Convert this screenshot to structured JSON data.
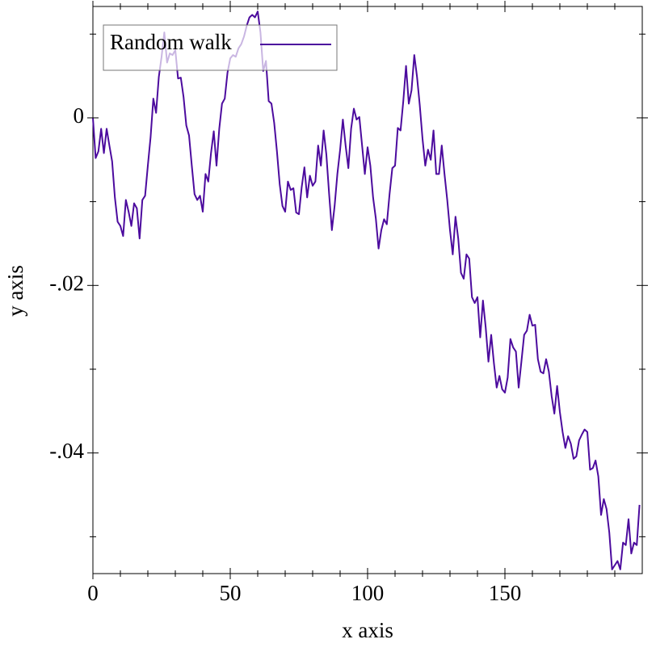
{
  "chart_data": {
    "type": "line",
    "xlabel": "x axis",
    "ylabel": "y axis",
    "x": [
      0,
      1,
      2,
      3,
      4,
      5,
      6,
      7,
      8,
      9,
      10,
      11,
      12,
      13,
      14,
      15,
      16,
      17,
      18,
      19,
      20,
      21,
      22,
      23,
      24,
      25,
      26,
      27,
      28,
      29,
      30,
      31,
      32,
      33,
      34,
      35,
      36,
      37,
      38,
      39,
      40,
      41,
      42,
      43,
      44,
      45,
      46,
      47,
      48,
      49,
      50,
      51,
      52,
      53,
      54,
      55,
      56,
      57,
      58,
      59,
      60,
      61,
      62,
      63,
      64,
      65,
      66,
      67,
      68,
      69,
      70,
      71,
      72,
      73,
      74,
      75,
      76,
      77,
      78,
      79,
      80,
      81,
      82,
      83,
      84,
      85,
      86,
      87,
      88,
      89,
      90,
      91,
      92,
      93,
      94,
      95,
      96,
      97,
      98,
      99,
      100,
      101,
      102,
      103,
      104,
      105,
      106,
      107,
      108,
      109,
      110,
      111,
      112,
      113,
      114,
      115,
      116,
      117,
      118,
      119,
      120,
      121,
      122,
      123,
      124,
      125,
      126,
      127,
      128,
      129,
      130,
      131,
      132,
      133,
      134,
      135,
      136,
      137,
      138,
      139,
      140,
      141,
      142,
      143,
      144,
      145,
      146,
      147,
      148,
      149,
      150,
      151,
      152,
      153,
      154,
      155,
      156,
      157,
      158,
      159,
      160,
      161,
      162,
      163,
      164,
      165,
      166,
      167,
      168,
      169,
      170,
      171,
      172,
      173,
      174,
      175,
      176,
      177,
      178,
      179,
      180,
      181,
      182,
      183,
      184,
      185,
      186,
      187,
      188,
      189,
      190,
      191,
      192,
      193,
      194,
      195,
      196,
      197,
      198,
      199
    ],
    "series": [
      {
        "name": "Random walk",
        "color": "#4c0b9e",
        "values": [
          0,
          -0.0048,
          -0.004,
          -0.0013,
          -0.0042,
          -0.0013,
          -0.0033,
          -0.0052,
          -0.0095,
          -0.0124,
          -0.0129,
          -0.0141,
          -0.0098,
          -0.0112,
          -0.0129,
          -0.0102,
          -0.0108,
          -0.0144,
          -0.0098,
          -0.0093,
          -0.0057,
          -0.0023,
          0.0023,
          0.0006,
          0.0049,
          0.0073,
          0.0102,
          0.0066,
          0.0077,
          0.0075,
          0.0081,
          0.0047,
          0.0048,
          0.0025,
          -0.0009,
          -0.0021,
          -0.0057,
          -0.0091,
          -0.0098,
          -0.0093,
          -0.0112,
          -0.0067,
          -0.0076,
          -0.0042,
          -0.0016,
          -0.0057,
          -0.0013,
          0.0017,
          0.0023,
          0.0054,
          0.0071,
          0.0075,
          0.0073,
          0.0083,
          0.0088,
          0.0097,
          0.011,
          0.012,
          0.0123,
          0.012,
          0.0127,
          0.0102,
          0.0056,
          0.0068,
          0.002,
          0.0017,
          -0.0006,
          -0.004,
          -0.0079,
          -0.0105,
          -0.0112,
          -0.0076,
          -0.0086,
          -0.0084,
          -0.0113,
          -0.0115,
          -0.0083,
          -0.0059,
          -0.0095,
          -0.0069,
          -0.0081,
          -0.0076,
          -0.0033,
          -0.0057,
          -0.0015,
          -0.0044,
          -0.0091,
          -0.0134,
          -0.0105,
          -0.0067,
          -0.0038,
          -0.0002,
          -0.0033,
          -0.006,
          -0.0013,
          0.0011,
          -0.0002,
          0.0001,
          -0.0033,
          -0.0067,
          -0.0035,
          -0.0057,
          -0.0095,
          -0.012,
          -0.0156,
          -0.0134,
          -0.0121,
          -0.0127,
          -0.0091,
          -0.006,
          -0.0057,
          -0.0012,
          -0.0015,
          0.002,
          0.0062,
          0.0017,
          0.0033,
          0.0075,
          0.0049,
          0.0015,
          -0.0025,
          -0.0057,
          -0.0038,
          -0.005,
          -0.0015,
          -0.0067,
          -0.0067,
          -0.0033,
          -0.0067,
          -0.0098,
          -0.0134,
          -0.0163,
          -0.0118,
          -0.0144,
          -0.0185,
          -0.0192,
          -0.0163,
          -0.0168,
          -0.0214,
          -0.0221,
          -0.0214,
          -0.0262,
          -0.0218,
          -0.025,
          -0.0291,
          -0.0259,
          -0.0293,
          -0.0322,
          -0.0308,
          -0.0324,
          -0.0328,
          -0.031,
          -0.0264,
          -0.0274,
          -0.0279,
          -0.0322,
          -0.0291,
          -0.0259,
          -0.0254,
          -0.0235,
          -0.0248,
          -0.0247,
          -0.0288,
          -0.0303,
          -0.0305,
          -0.0288,
          -0.0303,
          -0.0332,
          -0.0353,
          -0.032,
          -0.0351,
          -0.0375,
          -0.0394,
          -0.038,
          -0.0389,
          -0.0407,
          -0.0404,
          -0.0385,
          -0.0378,
          -0.0372,
          -0.0375,
          -0.042,
          -0.0418,
          -0.0409,
          -0.0428,
          -0.0474,
          -0.0455,
          -0.0467,
          -0.0495,
          -0.0539,
          -0.0534,
          -0.0529,
          -0.0539,
          -0.0507,
          -0.051,
          -0.0479,
          -0.052,
          -0.0507,
          -0.051,
          -0.0462
        ]
      }
    ],
    "xlim": [
      0,
      200
    ],
    "ylim": [
      -0.0544,
      0.0133
    ],
    "xticks": [
      0,
      50,
      100,
      150
    ],
    "yticks": [
      0,
      {
        "value": -0.02,
        "label": "-.02"
      },
      {
        "value": -0.04,
        "label": "-.04"
      }
    ],
    "xminorticks": [
      10,
      20,
      30,
      40,
      60,
      70,
      80,
      90,
      110,
      120,
      130,
      140,
      160,
      170,
      180,
      190
    ],
    "yminorticks": [
      0.01,
      -0.01,
      -0.03,
      -0.05
    ],
    "grid": false,
    "legend": "top-left"
  }
}
